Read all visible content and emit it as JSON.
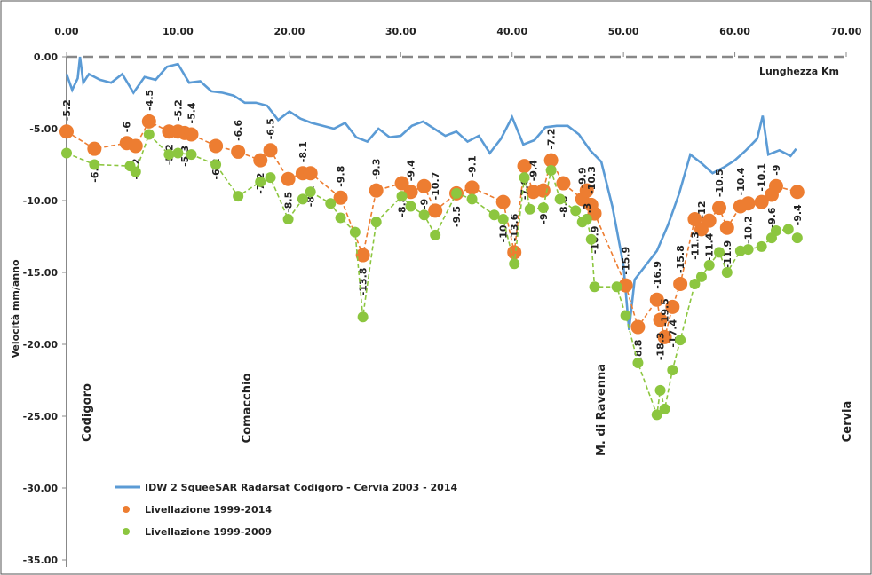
{
  "chart_data": {
    "type": "line",
    "x_label": "Lunghezza Km",
    "y_label": "Velocità mm/anno",
    "annotations": [
      "Codigoro",
      "Comacchio",
      "M. di Ravenna",
      "Cervia"
    ],
    "xlim": [
      0,
      70
    ],
    "ylim": [
      -35,
      0
    ],
    "xticks": [
      {
        "value": 0,
        "label": "0.00"
      },
      {
        "value": 10,
        "label": "10.00"
      },
      {
        "value": 20,
        "label": "20.00"
      },
      {
        "value": 30,
        "label": "30.00"
      },
      {
        "value": 40,
        "label": "40.00"
      },
      {
        "value": 50,
        "label": "50.00"
      },
      {
        "value": 60,
        "label": "60.00"
      },
      {
        "value": 70,
        "label": "70.00"
      }
    ],
    "yticks": [
      {
        "value": 0,
        "label": "0.00"
      },
      {
        "value": -5,
        "label": "-5.00"
      },
      {
        "value": -10,
        "label": "-10.00"
      },
      {
        "value": -15,
        "label": "-15.00"
      },
      {
        "value": -20,
        "label": "-20.00"
      },
      {
        "value": -25,
        "label": "-25.00"
      },
      {
        "value": -30,
        "label": "-30.00"
      },
      {
        "value": -35,
        "label": "-35.00"
      }
    ],
    "series": [
      {
        "name": "IDW 2 SqueeSAR Radarsat Codigoro - Cervia 2003 - 2014",
        "color": "#5b9bd5",
        "style": "solid",
        "x": [
          0,
          0.5,
          1,
          1.2,
          1.5,
          2,
          3,
          4,
          5,
          6,
          7,
          8,
          9,
          10,
          11,
          12,
          13,
          14,
          15,
          16,
          17,
          18,
          19,
          20,
          21,
          22,
          23,
          24,
          25,
          26,
          27,
          28,
          29,
          30,
          31,
          32,
          33,
          34,
          35,
          36,
          37,
          38,
          39,
          40,
          41,
          42,
          43,
          44,
          45,
          46,
          47,
          48,
          49,
          50,
          50.5,
          51,
          52,
          53,
          54,
          55,
          56,
          57,
          58,
          59,
          60,
          61,
          62,
          62.5,
          63,
          64,
          65,
          65.5
        ],
        "values": [
          -1.2,
          -2.3,
          -1.5,
          0,
          -1.8,
          -1.2,
          -1.6,
          -1.8,
          -1.2,
          -2.5,
          -1.4,
          -1.6,
          -0.7,
          -0.5,
          -1.8,
          -1.7,
          -2.4,
          -2.5,
          -2.7,
          -3.2,
          -3.2,
          -3.4,
          -4.4,
          -3.8,
          -4.3,
          -4.6,
          -4.8,
          -5,
          -4.6,
          -5.6,
          -5.9,
          -5,
          -5.6,
          -5.5,
          -4.8,
          -4.5,
          -5,
          -5.5,
          -5.2,
          -5.9,
          -5.5,
          -6.7,
          -5.7,
          -4.2,
          -6.1,
          -5.8,
          -4.9,
          -4.8,
          -4.8,
          -5.4,
          -6.5,
          -7.3,
          -10.4,
          -14.5,
          -19,
          -15.5,
          -14.5,
          -13.5,
          -11.7,
          -9.5,
          -6.8,
          -7.4,
          -8.1,
          -7.7,
          -7.2,
          -6.5,
          -5.7,
          -4.1,
          -6.8,
          -6.5,
          -6.9,
          -6.4
        ]
      },
      {
        "name": "Livellazione 1999-2014",
        "color": "#ed7d31",
        "style": "dashed",
        "markers": true,
        "labels": true,
        "x": [
          0,
          2.5,
          5.4,
          6.2,
          7.4,
          9.2,
          10,
          10.6,
          11.2,
          13.4,
          15.4,
          17.4,
          18.3,
          19.9,
          21.2,
          21.9,
          24.6,
          26.6,
          27.8,
          30.1,
          30.9,
          32.1,
          33.1,
          35,
          36.4,
          39.2,
          40.2,
          41.1,
          41.9,
          42.8,
          43.5,
          44.6,
          46.3,
          46.7,
          47.1,
          47.4,
          50.2,
          51.3,
          53,
          53.3,
          53.7,
          54.4,
          55.1,
          56.4,
          57,
          57.7,
          58.6,
          59.3,
          60.5,
          61.2,
          62.4,
          63.3,
          63.7,
          65.6
        ],
        "values": [
          -5.2,
          -6.4,
          -6,
          -6.2,
          -4.5,
          -5.2,
          -5.2,
          -5.3,
          -5.4,
          -6.2,
          -6.6,
          -7.2,
          -6.5,
          -8.5,
          -8.1,
          -8.1,
          -9.8,
          -13.8,
          -9.3,
          -8.8,
          -9.4,
          -9,
          -10.7,
          -9.5,
          -9.1,
          -10.1,
          -13.6,
          -7.6,
          -9.4,
          -9.3,
          -7.2,
          -8.8,
          -9.9,
          -9.3,
          -10.3,
          -10.9,
          -15.9,
          -18.8,
          -16.9,
          -18.3,
          -19.5,
          -17.4,
          -15.8,
          -11.3,
          -12,
          -11.4,
          -10.5,
          -11.9,
          -10.4,
          -10.2,
          -10.1,
          -9.6,
          -9,
          -9.4
        ]
      },
      {
        "name": "Livellazione 1999-2009",
        "color": "#8cc63f",
        "style": "dashed",
        "markers": true,
        "x": [
          0,
          2.5,
          5.7,
          6.2,
          7.4,
          9.2,
          10,
          11.2,
          13.4,
          15.4,
          17.4,
          18.3,
          19.9,
          21.2,
          21.9,
          23.7,
          24.6,
          25.9,
          26.6,
          27.8,
          30.1,
          30.9,
          32.1,
          33.1,
          35,
          36.4,
          38.4,
          39.2,
          40.2,
          41.1,
          41.6,
          42.8,
          43.5,
          44.3,
          45.7,
          46.3,
          46.7,
          47.1,
          47.4,
          49.4,
          50.2,
          51.3,
          53,
          53.3,
          53.7,
          54.4,
          55.1,
          56.4,
          57,
          57.7,
          58.6,
          59.3,
          60.5,
          61.2,
          62.4,
          63.3,
          63.7,
          64.8,
          65.6
        ],
        "values": [
          -6.7,
          -7.5,
          -7.6,
          -8,
          -5.4,
          -6.8,
          -6.7,
          -6.8,
          -7.5,
          -9.7,
          -8.7,
          -8.4,
          -11.3,
          -9.9,
          -9.4,
          -10.2,
          -11.2,
          -12.2,
          -18.1,
          -11.5,
          -9.7,
          -10.4,
          -11,
          -12.4,
          -9.5,
          -9.9,
          -11,
          -11.3,
          -14.4,
          -8.4,
          -10.6,
          -10.5,
          -7.9,
          -9.9,
          -10.7,
          -11.5,
          -11.3,
          -12.7,
          -16,
          -16,
          -18,
          -21.3,
          -24.9,
          -23.2,
          -24.5,
          -21.8,
          -19.7,
          -15.8,
          -15.3,
          -14.5,
          -13.6,
          -15,
          -13.5,
          -13.4,
          -13.2,
          -12.6,
          -12.1,
          -12,
          -12.6
        ]
      }
    ]
  }
}
